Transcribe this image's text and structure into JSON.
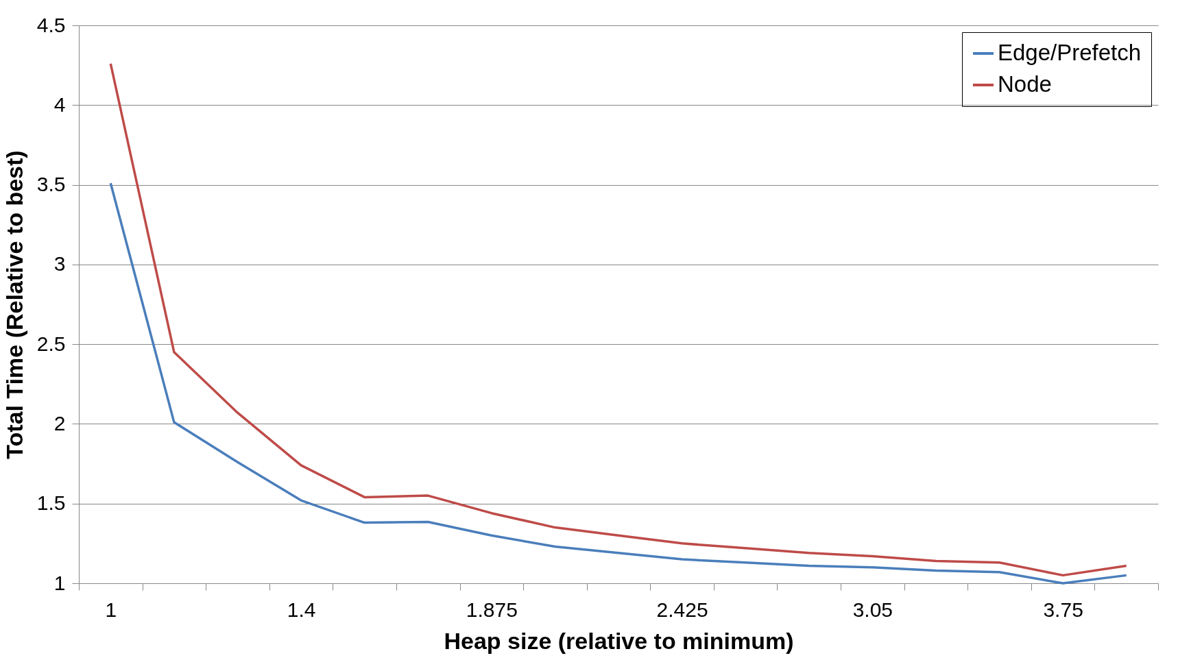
{
  "chart_data": {
    "type": "line",
    "xlabel": "Heap size (relative to minimum)",
    "ylabel": "Total Time (Relative to best)",
    "categories": [
      "1",
      null,
      null,
      "1.4",
      null,
      null,
      "1.875",
      null,
      null,
      "2.425",
      null,
      null,
      "3.05",
      null,
      null,
      "3.75",
      null
    ],
    "series": [
      {
        "name": "Edge/Prefetch",
        "color": "#4a7ebb",
        "values": [
          3.51,
          2.01,
          1.76,
          1.52,
          1.38,
          1.385,
          1.3,
          1.23,
          1.19,
          1.15,
          1.13,
          1.11,
          1.1,
          1.08,
          1.07,
          1.0,
          1.05
        ]
      },
      {
        "name": "Node",
        "color": "#be4b48",
        "values": [
          4.26,
          2.45,
          2.07,
          1.74,
          1.54,
          1.55,
          1.44,
          1.35,
          1.3,
          1.25,
          1.22,
          1.19,
          1.17,
          1.14,
          1.13,
          1.05,
          1.11
        ]
      }
    ],
    "ylim": [
      1,
      4.5
    ],
    "yticks": [
      1,
      1.5,
      2,
      2.5,
      3,
      3.5,
      4,
      4.5
    ],
    "grid": "y",
    "legend": "top right",
    "marker": "none",
    "line_style": "solid"
  }
}
